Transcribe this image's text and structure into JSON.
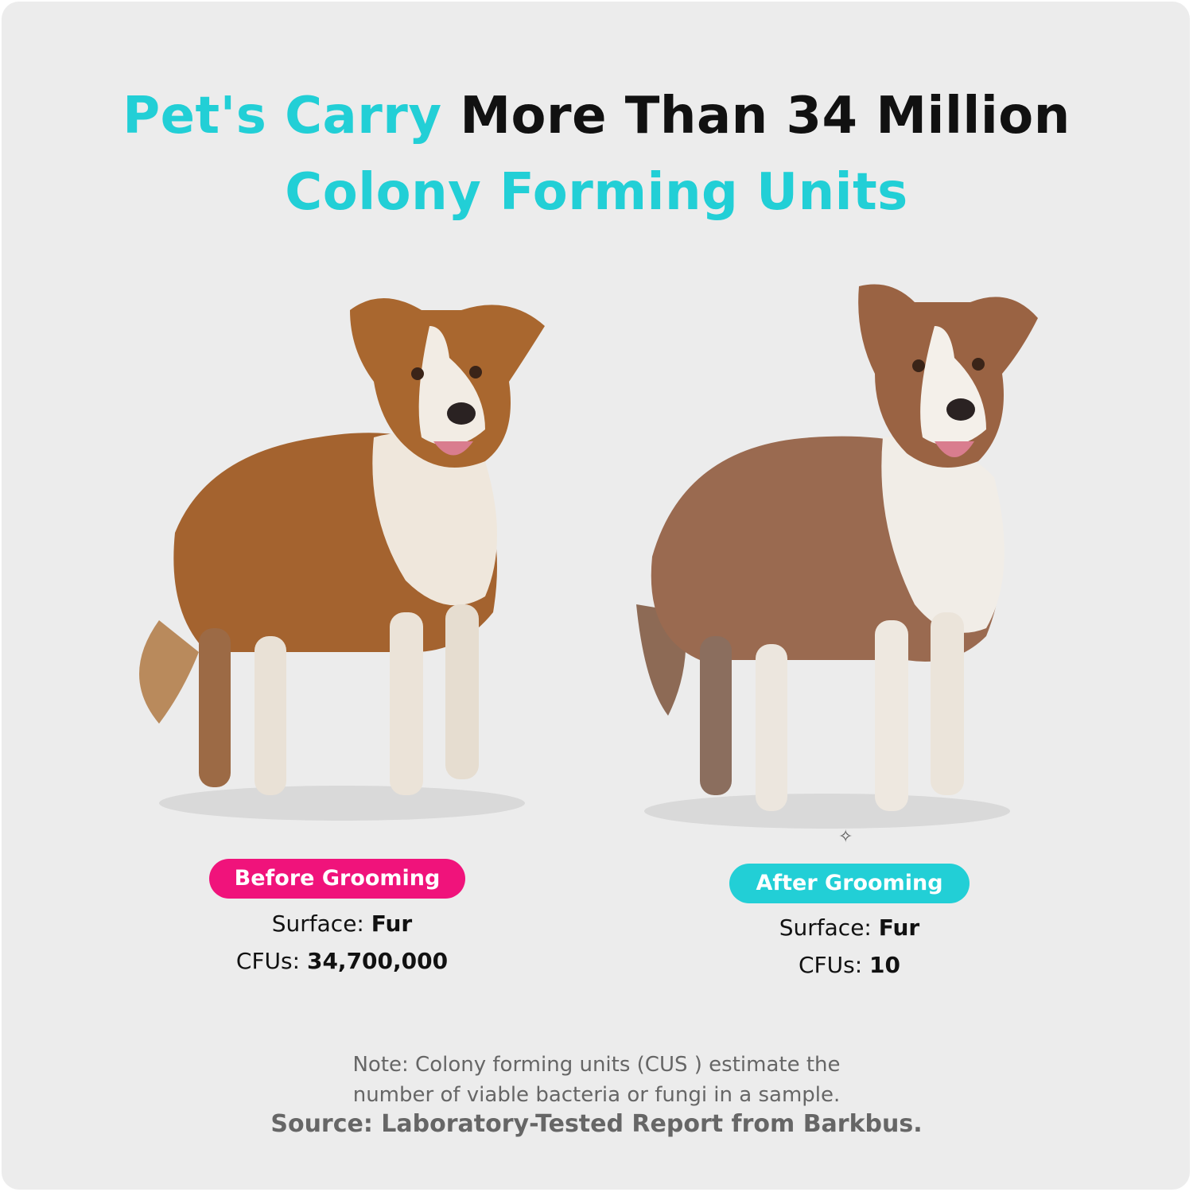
{
  "headline": {
    "line1_accent": "Pet's Carry",
    "line1_rest": "More Than 34 Million",
    "line2": "Colony Forming Units"
  },
  "colors": {
    "accent_cyan": "#22cfd6",
    "accent_pink": "#f0137b",
    "background": "#ececec"
  },
  "before": {
    "label": "Before Grooming",
    "surface_label": "Surface:",
    "surface_value": "Fur",
    "cfu_label": "CFUs:",
    "cfu_value": "34,700,000"
  },
  "after": {
    "label": "After Grooming",
    "surface_label": "Surface:",
    "surface_value": "Fur",
    "cfu_label": "CFUs:",
    "cfu_value": "10"
  },
  "note": {
    "line1": "Note: Colony forming units (CUS ) estimate the",
    "line2": "number of viable bacteria or fungi in a sample.",
    "source": "Source: Laboratory-Tested Report from Barkbus."
  }
}
